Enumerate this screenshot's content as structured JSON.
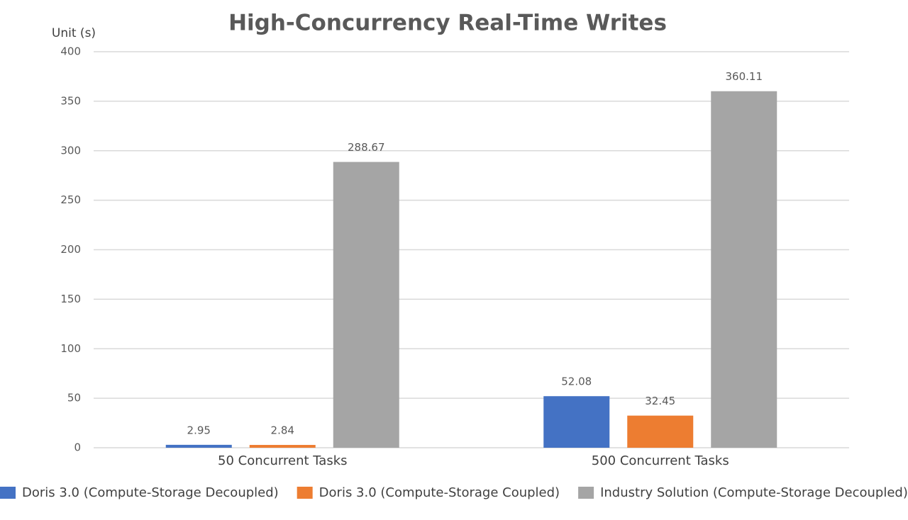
{
  "chart_data": {
    "type": "bar",
    "title": "High-Concurrency Real-Time Writes",
    "y_label": "Unit (s)",
    "categories": [
      "50 Concurrent Tasks",
      "500 Concurrent Tasks"
    ],
    "series": [
      {
        "name": "Doris 3.0 (Compute-Storage Decoupled)",
        "color": "#4472c4",
        "values": [
          2.95,
          52.08
        ]
      },
      {
        "name": "Doris 3.0 (Compute-Storage Coupled)",
        "color": "#ed7d31",
        "values": [
          2.84,
          32.45
        ]
      },
      {
        "name": "Industry Solution (Compute-Storage Decoupled)",
        "color": "#a5a5a5",
        "values": [
          288.67,
          360.11
        ]
      }
    ],
    "ylim": [
      0,
      400
    ],
    "yticks": [
      0,
      50,
      100,
      150,
      200,
      250,
      300,
      350,
      400
    ],
    "grid": true
  }
}
